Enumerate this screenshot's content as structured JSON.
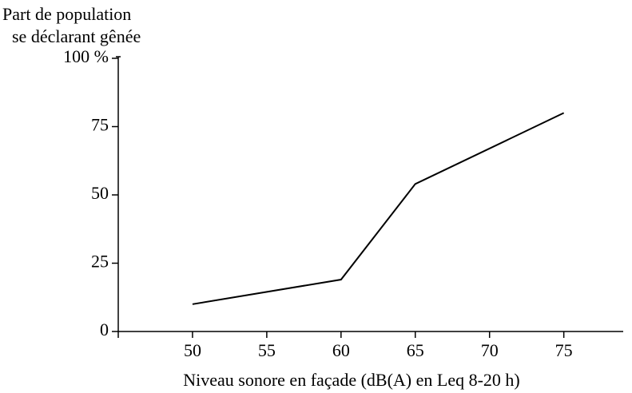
{
  "chart_data": {
    "type": "line",
    "ylabel": [
      "Part de population",
      "se déclarant gênée"
    ],
    "xlabel": "Niveau sonore en façade (dB(A) en Leq 8-20 h)",
    "series": [
      {
        "color": "#000000",
        "x": [
          50,
          60,
          65,
          75
        ],
        "values": [
          10,
          19,
          54,
          80
        ]
      }
    ],
    "xlim": [
      45,
      79
    ],
    "xticks": [
      50,
      55,
      60,
      65,
      70,
      75
    ],
    "ylim": [
      0,
      100
    ],
    "yticks": [
      0,
      25,
      50,
      75,
      {
        "value": 100,
        "label": "100 %"
      }
    ],
    "grid": false
  }
}
